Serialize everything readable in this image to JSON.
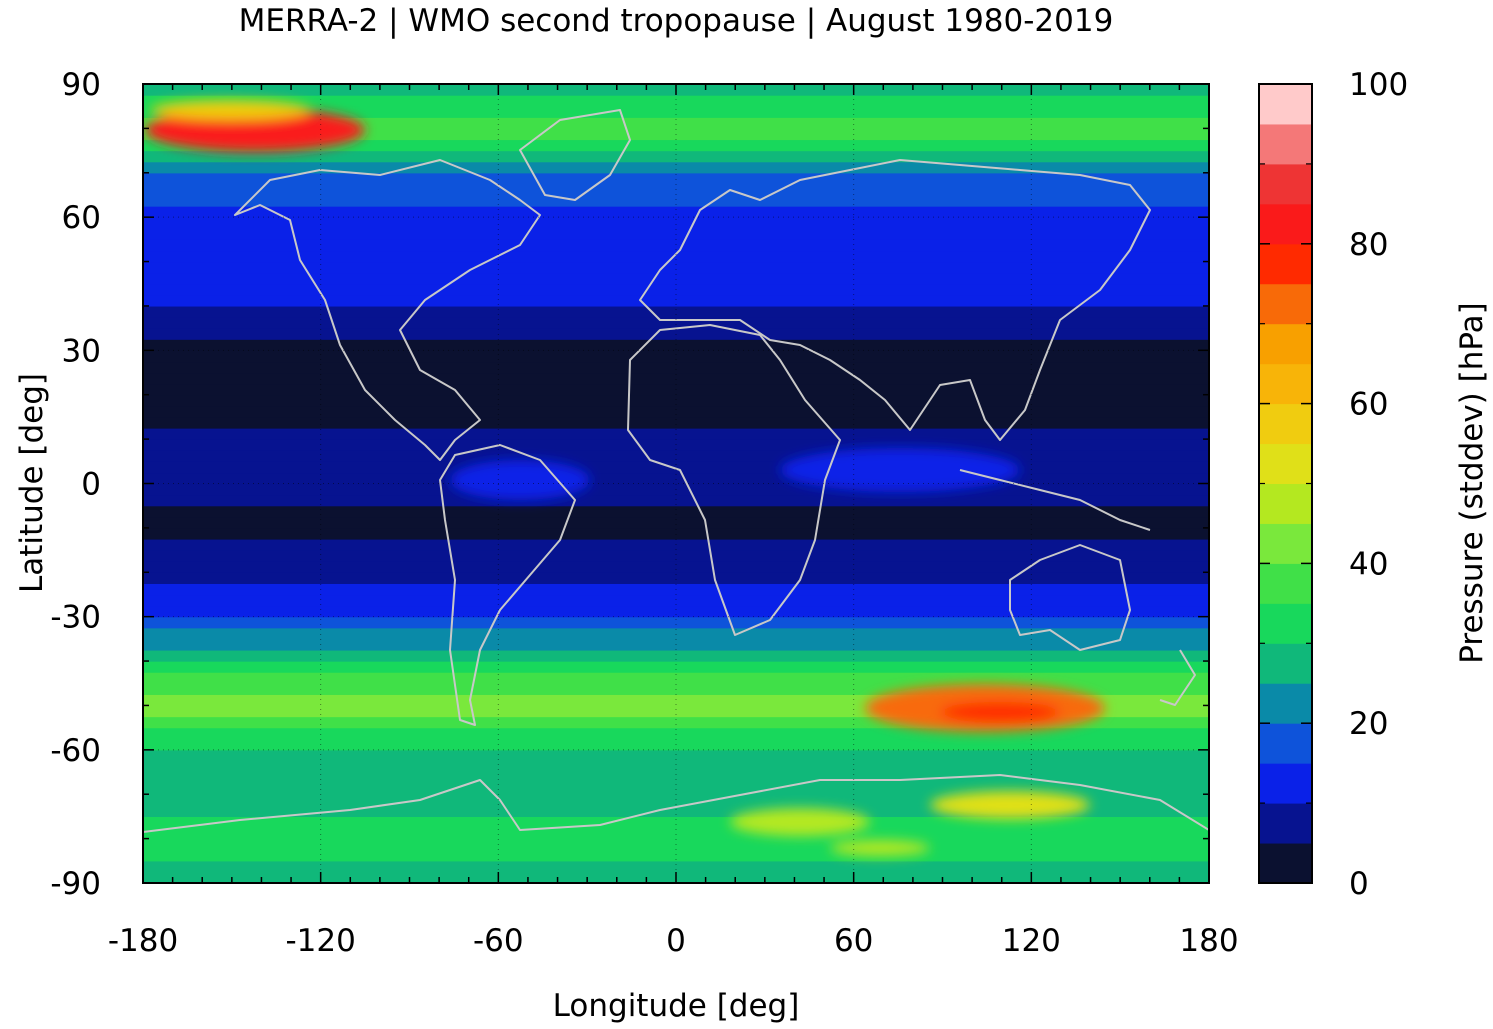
{
  "chart_data": {
    "type": "heatmap",
    "title": "MERRA-2 | WMO second tropopause | August 1980-2019",
    "xlabel": "Longitude [deg]",
    "ylabel": "Latitude [deg]",
    "xlim": [
      -180,
      180
    ],
    "ylim": [
      -90,
      90
    ],
    "x_ticks": [
      -180,
      -120,
      -60,
      0,
      60,
      120,
      180
    ],
    "y_ticks": [
      90,
      60,
      30,
      0,
      -30,
      -60,
      -90
    ],
    "x_tick_labels": [
      "-180",
      "-120",
      "-60",
      "0",
      "60",
      "120",
      "180"
    ],
    "y_tick_labels": [
      "90",
      "60",
      "30",
      "0",
      "-30",
      "-60",
      "-90"
    ],
    "grid": true,
    "colorbar": {
      "label": "Pressure (stddev) [hPa]",
      "range": [
        0,
        100
      ],
      "ticks": [
        0,
        20,
        40,
        60,
        80,
        100
      ],
      "tick_labels": [
        "0",
        "20",
        "40",
        "60",
        "80",
        "100"
      ],
      "levels": 20,
      "colors": [
        "#0b1130",
        "#071390",
        "#0a21e8",
        "#0e53da",
        "#0a8aa8",
        "#10b87a",
        "#18d85c",
        "#40e048",
        "#7ae83c",
        "#b4e820",
        "#e0e018",
        "#f0cc10",
        "#f8b408",
        "#f8a000",
        "#f86a08",
        "#ff2a00",
        "#fa1a1a",
        "#ee3434",
        "#f47878",
        "#ffcaca"
      ]
    },
    "zonal_mean_profile": {
      "lat": [
        -90,
        -80,
        -70,
        -60,
        -50,
        -40,
        -30,
        -20,
        -10,
        0,
        10,
        20,
        30,
        40,
        50,
        60,
        70,
        80,
        90
      ],
      "stddev_hpa": [
        24,
        36,
        26,
        28,
        44,
        30,
        14,
        8,
        4,
        6,
        6,
        2,
        4,
        10,
        14,
        14,
        20,
        40,
        26
      ]
    }
  }
}
